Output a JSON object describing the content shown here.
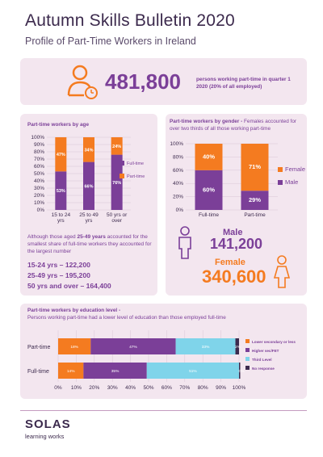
{
  "header": {
    "title": "Autumn Skills Bulletin 2020",
    "subtitle": "Profile of Part-Time Workers in Ireland"
  },
  "hero": {
    "number": "481,800",
    "text": "persons working part-time in quarter 1 2020 (20% of all employed)"
  },
  "age_panel": {
    "title": "Part-time workers by age",
    "note_pre": "Although those aged ",
    "note_bold": "25-49 years",
    "note_post": " accounted for the smallest share of full-time workers they accounted for the largest number",
    "stats": [
      "15-24 yrs – 122,200",
      "25-49 yrs – 195,200",
      "50 yrs and over – 164,400"
    ]
  },
  "gender_panel": {
    "title_bold": "Part-time workers by gender -",
    "title_rest": " Females accounted for over two thirds of all those working part-time",
    "male_label": "Male",
    "male_value": "141,200",
    "female_label": "Female",
    "female_value": "340,600"
  },
  "education_panel": {
    "title_bold": "Part-time workers by education level -",
    "title_rest": " Persons working part-time had a lower level of education than those employed full-time"
  },
  "logo": {
    "name": "SOLAS",
    "tagline": "learning works"
  },
  "colors": {
    "purple": "#7b3f98",
    "orange": "#f47b20",
    "light_blue": "#7fd4ea",
    "dark_purple": "#3c2a4d",
    "panel_bg": "#f3e6ef"
  },
  "chart_data": [
    {
      "type": "bar",
      "stacked": true,
      "categories": [
        "15 to 24 yrs",
        "25 to 49 yrs",
        "50 yrs or over"
      ],
      "series": [
        {
          "name": "Full-time",
          "values": [
            53,
            66,
            76
          ],
          "labels": [
            "53%",
            "66%",
            "76%"
          ],
          "color": "#7b3f98"
        },
        {
          "name": "Part-time",
          "values": [
            47,
            34,
            24
          ],
          "labels": [
            "47%",
            "34%",
            "24%"
          ],
          "color": "#f47b20"
        }
      ],
      "yticks": [
        "0%",
        "10%",
        "20%",
        "30%",
        "40%",
        "50%",
        "60%",
        "70%",
        "80%",
        "90%",
        "100%"
      ],
      "ylim": [
        0,
        100
      ],
      "legend_position": "right"
    },
    {
      "type": "bar",
      "stacked": true,
      "categories": [
        "Full-time",
        "Part-time"
      ],
      "series": [
        {
          "name": "Male",
          "values": [
            60,
            29
          ],
          "labels": [
            "60%",
            "29%"
          ],
          "color": "#7b3f98"
        },
        {
          "name": "Female",
          "values": [
            40,
            71
          ],
          "labels": [
            "40%",
            "71%"
          ],
          "color": "#f47b20"
        }
      ],
      "yticks": [
        "0%",
        "20%",
        "40%",
        "60%",
        "80%",
        "100%"
      ],
      "ylim": [
        0,
        100
      ],
      "legend_position": "right"
    },
    {
      "type": "bar",
      "orientation": "horizontal",
      "stacked": true,
      "categories": [
        "Part-time",
        "Full-time"
      ],
      "series": [
        {
          "name": "Lower secondary or less",
          "values": [
            18,
            14
          ],
          "labels": [
            "18%",
            "14%"
          ],
          "color": "#f47b20"
        },
        {
          "name": "Higher sec/FET",
          "values": [
            47,
            35
          ],
          "labels": [
            "47%",
            "35%"
          ],
          "color": "#7b3f98"
        },
        {
          "name": "Third Level",
          "values": [
            33,
            51
          ],
          "labels": [
            "33%",
            "51%"
          ],
          "color": "#7fd4ea"
        },
        {
          "name": "No response",
          "values": [
            2,
            0
          ],
          "labels": [
            "2%",
            "0%"
          ],
          "color": "#3c2a4d"
        }
      ],
      "xticks": [
        "0%",
        "10%",
        "20%",
        "30%",
        "40%",
        "50%",
        "60%",
        "70%",
        "80%",
        "90%",
        "100%"
      ],
      "xlim": [
        0,
        100
      ],
      "legend_position": "right"
    }
  ]
}
